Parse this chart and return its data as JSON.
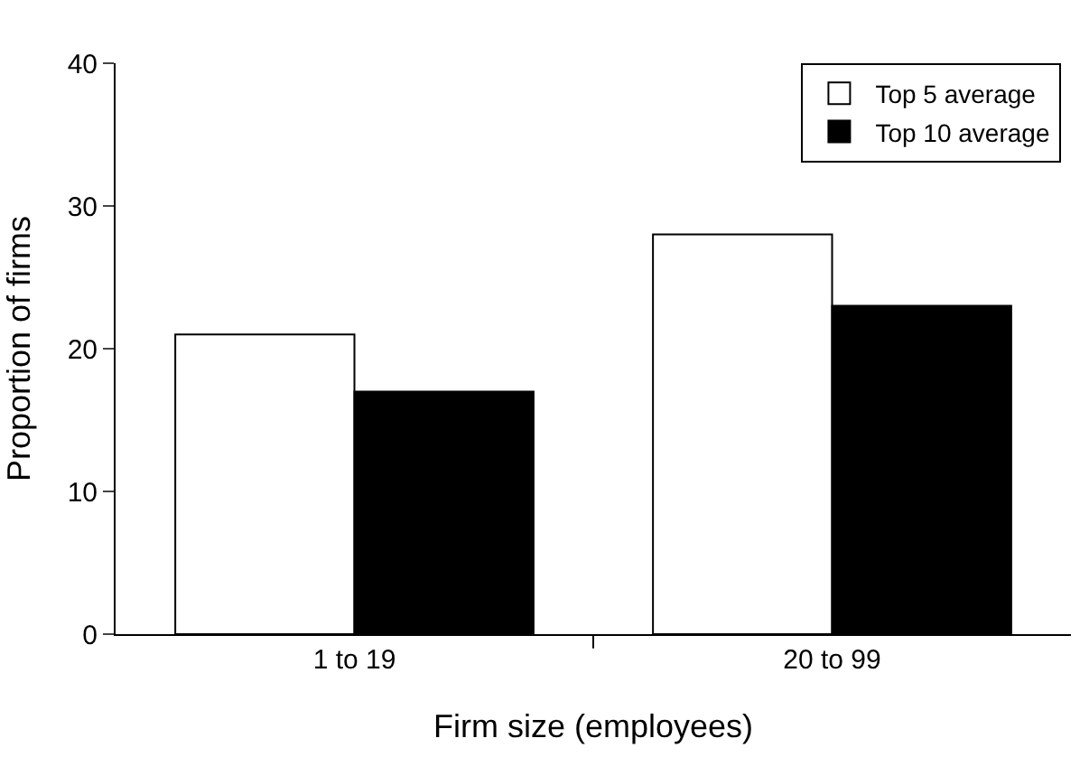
{
  "chart_data": {
    "type": "bar",
    "xlabel": "Firm size (employees)",
    "ylabel": "Proportion of firms",
    "categories": [
      "1 to 19",
      "20 to 99"
    ],
    "series": [
      {
        "name": "Top 5 average",
        "color": "#ffffff",
        "values": [
          21,
          28
        ]
      },
      {
        "name": "Top 10 average",
        "color": "#000000",
        "values": [
          17,
          23
        ]
      }
    ],
    "ylim": [
      0,
      40
    ],
    "yticks": [
      0,
      10,
      20,
      30,
      40
    ],
    "legend": "top right"
  }
}
